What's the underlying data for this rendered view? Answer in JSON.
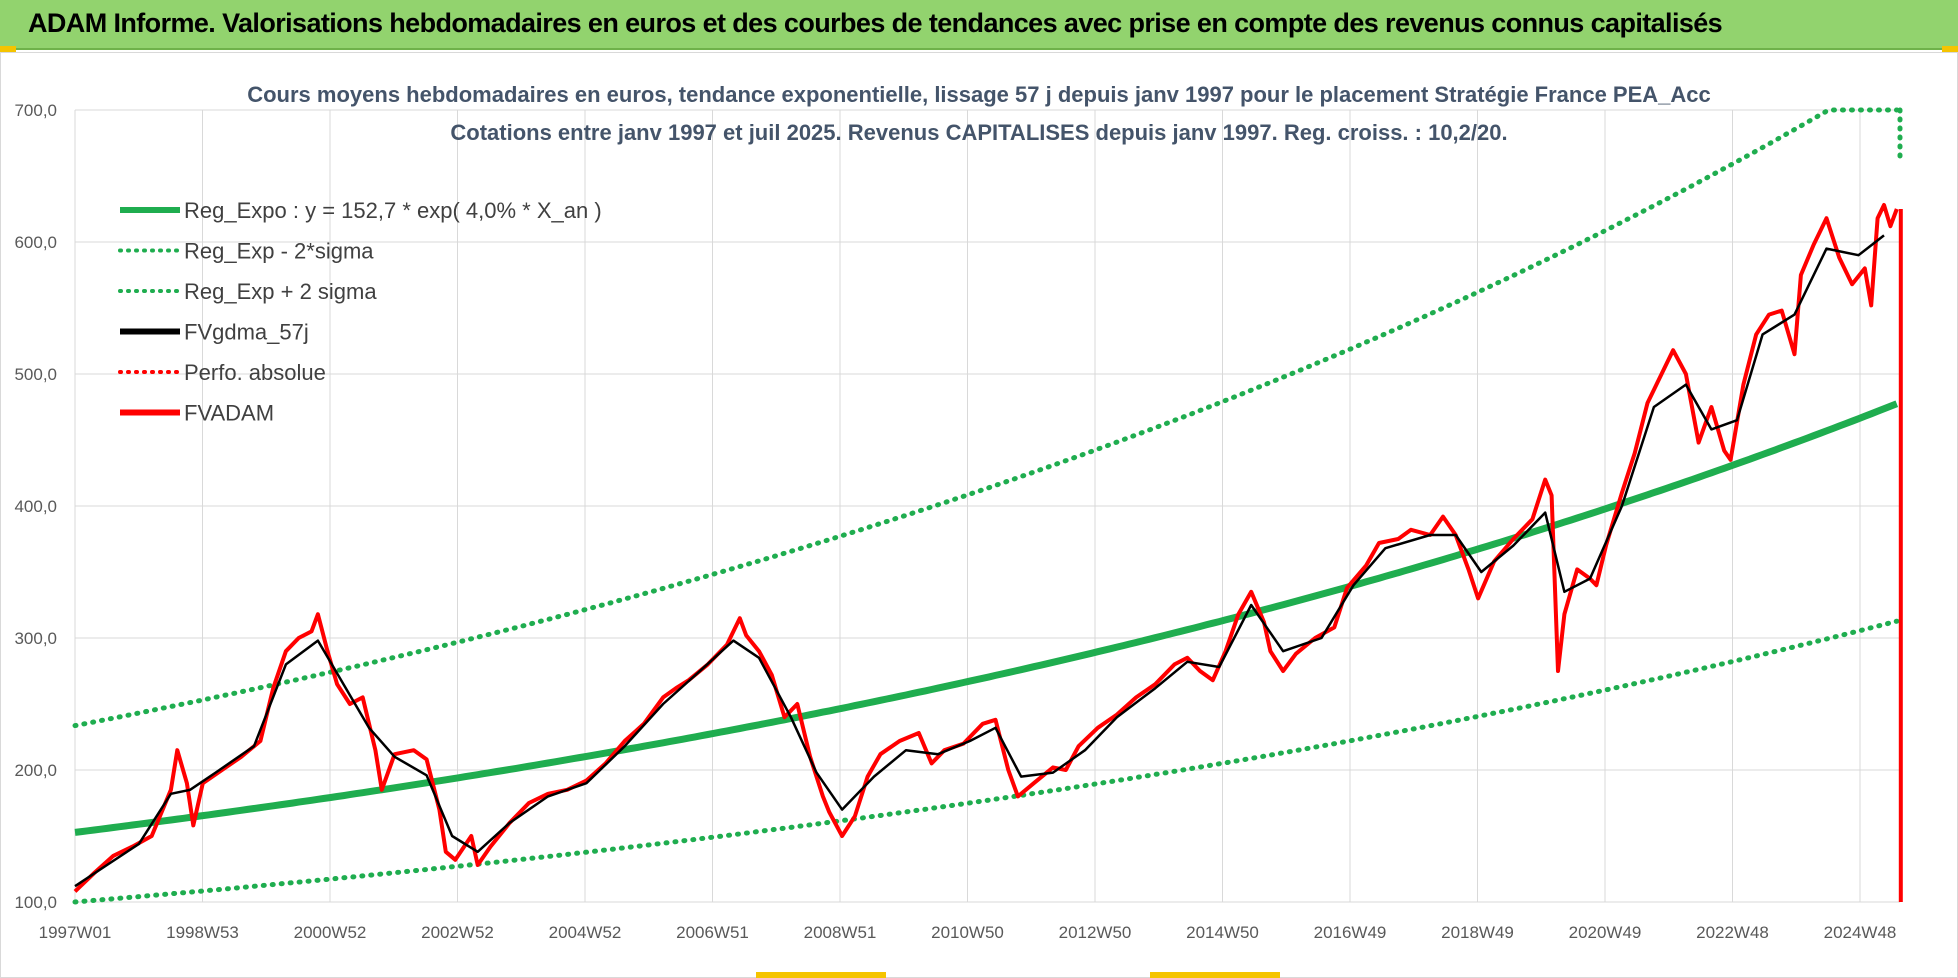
{
  "banner": {
    "title": "ADAM Informe. Valorisations hebdomadaires en euros et des courbes de tendances avec prise en compte des revenus connus capitalisés"
  },
  "colors": {
    "banner_bg": "#92d36e",
    "trend": "#1fad4f",
    "smooth": "#000000",
    "price": "#ff0000",
    "grid": "#d9d9d9"
  },
  "chart_data": {
    "type": "line",
    "title_line1": "Cours moyens hebdomadaires en euros, tendance exponentielle, lissage 57 j depuis janv 1997 pour le placement Stratégie France PEA_Acc",
    "title_line2": "Cotations entre janv 1997 et juil 2025. Revenus CAPITALISES depuis janv 1997. Reg. croiss. : 10,2/20.",
    "ylim": [
      100,
      700
    ],
    "y_ticks": [
      "100,0",
      "200,0",
      "300,0",
      "400,0",
      "500,0",
      "600,0",
      "700,0"
    ],
    "x_ticks": [
      "1997W01",
      "1998W53",
      "2000W52",
      "2002W52",
      "2004W52",
      "2006W51",
      "2008W51",
      "2010W50",
      "2012W50",
      "2014W50",
      "2016W49",
      "2018W49",
      "2020W49",
      "2022W48",
      "2024W48"
    ],
    "x_range_years": [
      1997.0,
      2025.55
    ],
    "grid": true,
    "legend_position": "top-left",
    "legend": [
      {
        "label": "Reg_Expo : y = 152,7 * exp( 4,0% *  X_an )",
        "color": "#1fad4f",
        "style": "solid"
      },
      {
        "label": "Reg_Exp - 2*sigma",
        "color": "#1fad4f",
        "style": "dotted"
      },
      {
        "label": "Reg_Exp + 2 sigma",
        "color": "#1fad4f",
        "style": "dotted"
      },
      {
        "label": "FVgdma_57j",
        "color": "#000000",
        "style": "solid"
      },
      {
        "label": "Perfo. absolue",
        "color": "#ff0000",
        "style": "dotted"
      },
      {
        "label": "FVADAM",
        "color": "#ff0000",
        "style": "solid"
      }
    ],
    "trend": {
      "a": 152.7,
      "rate": 0.04,
      "lower_factor": 0.655,
      "upper_factor": 1.53,
      "cap": 700
    },
    "fvadam": [
      [
        1997.0,
        108
      ],
      [
        1997.3,
        122
      ],
      [
        1997.6,
        135
      ],
      [
        1997.9,
        142
      ],
      [
        1998.2,
        150
      ],
      [
        1998.5,
        185
      ],
      [
        1998.6,
        215
      ],
      [
        1998.75,
        190
      ],
      [
        1998.85,
        158
      ],
      [
        1999.0,
        190
      ],
      [
        1999.3,
        200
      ],
      [
        1999.6,
        210
      ],
      [
        1999.9,
        222
      ],
      [
        2000.1,
        262
      ],
      [
        2000.3,
        290
      ],
      [
        2000.5,
        300
      ],
      [
        2000.7,
        305
      ],
      [
        2000.8,
        318
      ],
      [
        2000.95,
        290
      ],
      [
        2001.1,
        265
      ],
      [
        2001.3,
        250
      ],
      [
        2001.5,
        255
      ],
      [
        2001.7,
        215
      ],
      [
        2001.8,
        185
      ],
      [
        2002.0,
        212
      ],
      [
        2002.3,
        215
      ],
      [
        2002.5,
        208
      ],
      [
        2002.7,
        170
      ],
      [
        2002.8,
        138
      ],
      [
        2002.95,
        132
      ],
      [
        2003.2,
        150
      ],
      [
        2003.3,
        128
      ],
      [
        2003.5,
        142
      ],
      [
        2003.8,
        160
      ],
      [
        2004.1,
        175
      ],
      [
        2004.4,
        182
      ],
      [
        2004.7,
        185
      ],
      [
        2005.0,
        192
      ],
      [
        2005.3,
        205
      ],
      [
        2005.6,
        222
      ],
      [
        2005.9,
        235
      ],
      [
        2006.2,
        255
      ],
      [
        2006.4,
        262
      ],
      [
        2006.6,
        268
      ],
      [
        2006.9,
        280
      ],
      [
        2007.2,
        295
      ],
      [
        2007.4,
        315
      ],
      [
        2007.5,
        302
      ],
      [
        2007.7,
        290
      ],
      [
        2007.9,
        272
      ],
      [
        2008.1,
        240
      ],
      [
        2008.3,
        250
      ],
      [
        2008.5,
        210
      ],
      [
        2008.7,
        180
      ],
      [
        2008.8,
        168
      ],
      [
        2009.0,
        150
      ],
      [
        2009.2,
        165
      ],
      [
        2009.4,
        195
      ],
      [
        2009.6,
        212
      ],
      [
        2009.9,
        222
      ],
      [
        2010.2,
        228
      ],
      [
        2010.4,
        205
      ],
      [
        2010.6,
        215
      ],
      [
        2010.9,
        220
      ],
      [
        2011.2,
        235
      ],
      [
        2011.4,
        238
      ],
      [
        2011.6,
        200
      ],
      [
        2011.75,
        180
      ],
      [
        2012.0,
        190
      ],
      [
        2012.3,
        202
      ],
      [
        2012.5,
        200
      ],
      [
        2012.7,
        218
      ],
      [
        2013.0,
        232
      ],
      [
        2013.3,
        242
      ],
      [
        2013.6,
        255
      ],
      [
        2013.9,
        265
      ],
      [
        2014.2,
        280
      ],
      [
        2014.4,
        285
      ],
      [
        2014.6,
        275
      ],
      [
        2014.8,
        268
      ],
      [
        2015.0,
        290
      ],
      [
        2015.2,
        318
      ],
      [
        2015.4,
        335
      ],
      [
        2015.6,
        312
      ],
      [
        2015.7,
        290
      ],
      [
        2015.9,
        275
      ],
      [
        2016.1,
        288
      ],
      [
        2016.4,
        300
      ],
      [
        2016.7,
        308
      ],
      [
        2016.9,
        338
      ],
      [
        2017.2,
        355
      ],
      [
        2017.4,
        372
      ],
      [
        2017.7,
        375
      ],
      [
        2017.9,
        382
      ],
      [
        2018.2,
        378
      ],
      [
        2018.4,
        392
      ],
      [
        2018.6,
        378
      ],
      [
        2018.8,
        352
      ],
      [
        2018.95,
        330
      ],
      [
        2019.2,
        358
      ],
      [
        2019.5,
        375
      ],
      [
        2019.8,
        390
      ],
      [
        2020.0,
        420
      ],
      [
        2020.1,
        408
      ],
      [
        2020.2,
        275
      ],
      [
        2020.3,
        318
      ],
      [
        2020.5,
        352
      ],
      [
        2020.7,
        345
      ],
      [
        2020.8,
        340
      ],
      [
        2020.95,
        370
      ],
      [
        2021.2,
        410
      ],
      [
        2021.4,
        440
      ],
      [
        2021.6,
        478
      ],
      [
        2021.8,
        498
      ],
      [
        2022.0,
        518
      ],
      [
        2022.2,
        500
      ],
      [
        2022.4,
        448
      ],
      [
        2022.6,
        475
      ],
      [
        2022.8,
        442
      ],
      [
        2022.9,
        435
      ],
      [
        2023.1,
        492
      ],
      [
        2023.3,
        530
      ],
      [
        2023.5,
        545
      ],
      [
        2023.7,
        548
      ],
      [
        2023.9,
        515
      ],
      [
        2024.0,
        575
      ],
      [
        2024.2,
        598
      ],
      [
        2024.4,
        618
      ],
      [
        2024.6,
        588
      ],
      [
        2024.8,
        568
      ],
      [
        2025.0,
        580
      ],
      [
        2025.1,
        552
      ],
      [
        2025.2,
        618
      ],
      [
        2025.3,
        628
      ],
      [
        2025.4,
        612
      ],
      [
        2025.5,
        625
      ]
    ],
    "fvgdma": [
      [
        1997.0,
        112
      ],
      [
        1997.5,
        128
      ],
      [
        1998.0,
        144
      ],
      [
        1998.5,
        182
      ],
      [
        1998.8,
        185
      ],
      [
        1999.2,
        198
      ],
      [
        1999.8,
        218
      ],
      [
        2000.3,
        280
      ],
      [
        2000.8,
        298
      ],
      [
        2001.2,
        265
      ],
      [
        2001.6,
        232
      ],
      [
        2002.0,
        210
      ],
      [
        2002.5,
        196
      ],
      [
        2002.9,
        150
      ],
      [
        2003.3,
        138
      ],
      [
        2003.8,
        160
      ],
      [
        2004.4,
        180
      ],
      [
        2005.0,
        190
      ],
      [
        2005.6,
        218
      ],
      [
        2006.2,
        250
      ],
      [
        2006.8,
        276
      ],
      [
        2007.3,
        298
      ],
      [
        2007.7,
        285
      ],
      [
        2008.2,
        240
      ],
      [
        2008.6,
        198
      ],
      [
        2009.0,
        170
      ],
      [
        2009.5,
        195
      ],
      [
        2010.0,
        215
      ],
      [
        2010.5,
        212
      ],
      [
        2011.0,
        222
      ],
      [
        2011.4,
        232
      ],
      [
        2011.8,
        195
      ],
      [
        2012.3,
        198
      ],
      [
        2012.8,
        215
      ],
      [
        2013.3,
        240
      ],
      [
        2013.9,
        262
      ],
      [
        2014.4,
        282
      ],
      [
        2014.9,
        278
      ],
      [
        2015.4,
        325
      ],
      [
        2015.9,
        290
      ],
      [
        2016.5,
        300
      ],
      [
        2017.0,
        340
      ],
      [
        2017.5,
        368
      ],
      [
        2018.2,
        378
      ],
      [
        2018.6,
        378
      ],
      [
        2019.0,
        350
      ],
      [
        2019.5,
        370
      ],
      [
        2020.0,
        395
      ],
      [
        2020.3,
        335
      ],
      [
        2020.7,
        345
      ],
      [
        2021.2,
        400
      ],
      [
        2021.7,
        475
      ],
      [
        2022.2,
        492
      ],
      [
        2022.6,
        458
      ],
      [
        2023.0,
        465
      ],
      [
        2023.4,
        530
      ],
      [
        2023.9,
        545
      ],
      [
        2024.4,
        595
      ],
      [
        2024.9,
        590
      ],
      [
        2025.3,
        605
      ]
    ]
  }
}
